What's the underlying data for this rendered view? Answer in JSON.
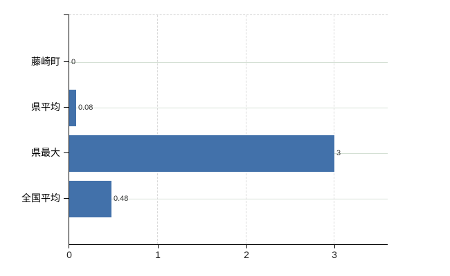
{
  "chart_data": {
    "type": "bar",
    "orientation": "horizontal",
    "title": "",
    "xlabel": "",
    "ylabel": "",
    "categories": [
      "藤崎町",
      "県平均",
      "県最大",
      "全国平均"
    ],
    "values": [
      0,
      0.08,
      3,
      0.48
    ],
    "value_labels": [
      "0",
      "0.08",
      "3",
      "0.48"
    ],
    "x_ticks": [
      0,
      1,
      2,
      3
    ],
    "x_tick_labels": [
      "0",
      "1",
      "2",
      "3"
    ],
    "xlim": [
      0,
      3.6
    ],
    "grid": "on",
    "legend": "none",
    "colors": {
      "bar": "#4271aa",
      "hgrid": "#d4e0d4",
      "vgrid": "#d9d9d9",
      "plot_top_border": "#cfcfcf",
      "axis": "#000000",
      "value_label": "#333333",
      "tick_label": "#222222",
      "category_label": "#000000",
      "background": "#ffffff"
    }
  }
}
